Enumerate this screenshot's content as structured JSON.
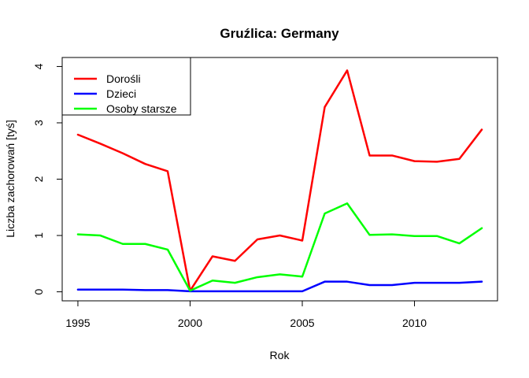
{
  "chart_data": {
    "type": "line",
    "title": "Gruźlica: Germany",
    "xlabel": "Rok",
    "ylabel": "Liczba zachorowań [tyś]",
    "x": [
      1995,
      1996,
      1997,
      1998,
      1999,
      2000,
      2001,
      2002,
      2003,
      2004,
      2005,
      2006,
      2007,
      2008,
      2009,
      2010,
      2011,
      2012,
      2013
    ],
    "xlim": [
      1994.3,
      2013.7
    ],
    "ylim": [
      -0.16,
      4.16
    ],
    "xticks": [
      1995,
      2000,
      2005,
      2010
    ],
    "yticks": [
      0,
      1,
      2,
      3,
      4
    ],
    "grid": false,
    "legend_position": "top-left",
    "series": [
      {
        "name": "Dorośli",
        "color": "#ff0000",
        "values": [
          2.79,
          2.63,
          2.46,
          2.27,
          2.14,
          0.02,
          0.63,
          0.55,
          0.93,
          1.0,
          0.91,
          3.28,
          3.93,
          2.42,
          2.42,
          2.32,
          2.31,
          2.36,
          2.88
        ]
      },
      {
        "name": "Dzieci",
        "color": "#0000ff",
        "values": [
          0.04,
          0.04,
          0.04,
          0.03,
          0.03,
          0.01,
          0.01,
          0.01,
          0.01,
          0.01,
          0.01,
          0.18,
          0.18,
          0.12,
          0.12,
          0.16,
          0.16,
          0.16,
          0.18
        ]
      },
      {
        "name": "Osoby starsze",
        "color": "#00ff00",
        "values": [
          1.02,
          1.0,
          0.85,
          0.85,
          0.75,
          0.02,
          0.2,
          0.16,
          0.26,
          0.31,
          0.27,
          1.39,
          1.57,
          1.01,
          1.02,
          0.99,
          0.99,
          0.86,
          1.13
        ]
      }
    ]
  }
}
